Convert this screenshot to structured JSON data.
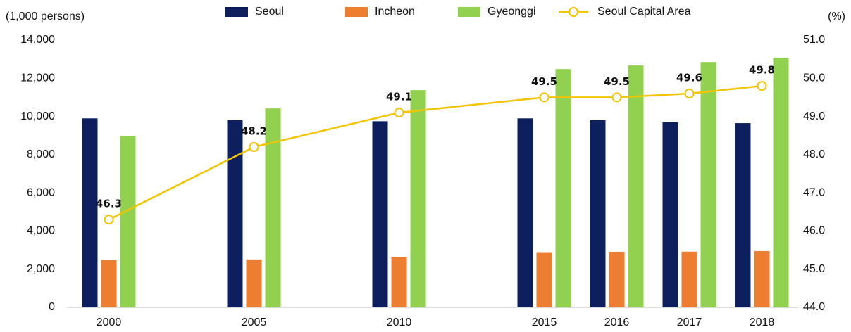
{
  "chart_data": {
    "type": "bar",
    "y_label": "(1,000 persons)",
    "y2_label": "(%)",
    "categories": [
      "2000",
      null,
      "2005",
      null,
      "2010",
      null,
      "2015",
      "2016",
      "2017",
      "2018"
    ],
    "series": [
      {
        "name": "Seoul",
        "color": "#0d1f5c",
        "values": [
          9900,
          null,
          9800,
          null,
          9750,
          null,
          9900,
          9800,
          9700,
          9650
        ]
      },
      {
        "name": "Incheon",
        "color": "#ed7d31",
        "values": [
          2470,
          null,
          2510,
          null,
          2640,
          null,
          2890,
          2910,
          2920,
          2950
        ]
      },
      {
        "name": "Gyeonggi",
        "color": "#92d050",
        "values": [
          8980,
          null,
          10420,
          null,
          11380,
          null,
          12480,
          12670,
          12850,
          13080
        ]
      },
      {
        "name": "Seoul Capital Area",
        "color": "#f5c400",
        "type": "line",
        "axis": "y2",
        "values": [
          46.3,
          null,
          48.2,
          null,
          49.1,
          null,
          49.5,
          49.5,
          49.6,
          49.8
        ]
      }
    ],
    "ylim": [
      0,
      14000
    ],
    "yticks": [
      0,
      {
        "value": 2000,
        "label": "2,000"
      },
      {
        "value": 4000,
        "label": "4,000"
      },
      {
        "value": 6000,
        "label": "6,000"
      },
      {
        "value": 8000,
        "label": "8,000"
      },
      {
        "value": 10000,
        "label": "10,000"
      },
      {
        "value": 12000,
        "label": "12,000"
      },
      {
        "value": 14000,
        "label": "14,000"
      }
    ],
    "y2lim": [
      44,
      51
    ],
    "y2ticks": [
      {
        "value": 44,
        "label": "44.0"
      },
      {
        "value": 45,
        "label": "45.0"
      },
      {
        "value": 46,
        "label": "46.0"
      },
      {
        "value": 47,
        "label": "47.0"
      },
      {
        "value": 48,
        "label": "48.0"
      },
      {
        "value": 49,
        "label": "49.0"
      },
      {
        "value": 50,
        "label": "50.0"
      },
      {
        "value": 51,
        "label": "51.0"
      }
    ],
    "grid": false,
    "legend": "top"
  }
}
